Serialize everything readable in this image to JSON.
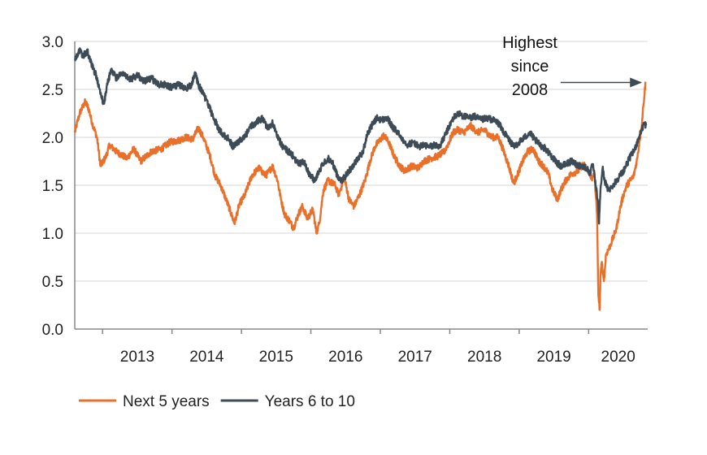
{
  "chart_data": {
    "type": "line",
    "title": "",
    "xlabel": "",
    "ylabel": "",
    "xlim": [
      2012.6,
      2020.85
    ],
    "ylim": [
      0,
      3.0
    ],
    "y_ticks": [
      "0.0",
      "0.5",
      "1.0",
      "1.5",
      "2.0",
      "2.5",
      "3.0"
    ],
    "x_tick_labels": [
      "2013",
      "2014",
      "2015",
      "2016",
      "2017",
      "2018",
      "2019",
      "2020"
    ],
    "grid": "horizontal",
    "legend_position": "bottom-left",
    "annotation": {
      "lines": [
        "Highest",
        "since",
        "2008"
      ],
      "points_to": [
        2020.8,
        2.58
      ]
    },
    "series": [
      {
        "name": "Next 5 years",
        "color": "#e8702a",
        "points": [
          [
            2012.6,
            2.05
          ],
          [
            2012.67,
            2.25
          ],
          [
            2012.75,
            2.37
          ],
          [
            2012.8,
            2.3
          ],
          [
            2012.85,
            2.15
          ],
          [
            2012.92,
            2.0
          ],
          [
            2012.97,
            1.7
          ],
          [
            2013.05,
            1.8
          ],
          [
            2013.1,
            1.92
          ],
          [
            2013.2,
            1.85
          ],
          [
            2013.35,
            1.78
          ],
          [
            2013.45,
            1.88
          ],
          [
            2013.55,
            1.75
          ],
          [
            2013.7,
            1.85
          ],
          [
            2013.85,
            1.88
          ],
          [
            2013.97,
            1.95
          ],
          [
            2014.1,
            1.97
          ],
          [
            2014.2,
            2.0
          ],
          [
            2014.3,
            1.98
          ],
          [
            2014.38,
            2.1
          ],
          [
            2014.45,
            2.0
          ],
          [
            2014.55,
            1.8
          ],
          [
            2014.62,
            1.6
          ],
          [
            2014.7,
            1.5
          ],
          [
            2014.78,
            1.35
          ],
          [
            2014.83,
            1.25
          ],
          [
            2014.9,
            1.1
          ],
          [
            2014.97,
            1.3
          ],
          [
            2015.05,
            1.4
          ],
          [
            2015.1,
            1.5
          ],
          [
            2015.15,
            1.6
          ],
          [
            2015.25,
            1.68
          ],
          [
            2015.35,
            1.6
          ],
          [
            2015.45,
            1.7
          ],
          [
            2015.52,
            1.55
          ],
          [
            2015.57,
            1.35
          ],
          [
            2015.62,
            1.2
          ],
          [
            2015.7,
            1.12
          ],
          [
            2015.75,
            1.05
          ],
          [
            2015.82,
            1.2
          ],
          [
            2015.88,
            1.28
          ],
          [
            2015.95,
            1.15
          ],
          [
            2016.03,
            1.25
          ],
          [
            2016.08,
            1.0
          ],
          [
            2016.12,
            1.1
          ],
          [
            2016.18,
            1.45
          ],
          [
            2016.25,
            1.55
          ],
          [
            2016.35,
            1.5
          ],
          [
            2016.4,
            1.4
          ],
          [
            2016.48,
            1.58
          ],
          [
            2016.55,
            1.35
          ],
          [
            2016.62,
            1.28
          ],
          [
            2016.7,
            1.4
          ],
          [
            2016.78,
            1.55
          ],
          [
            2016.85,
            1.75
          ],
          [
            2016.92,
            1.9
          ],
          [
            2016.97,
            1.95
          ],
          [
            2017.05,
            2.02
          ],
          [
            2017.12,
            1.95
          ],
          [
            2017.2,
            1.8
          ],
          [
            2017.28,
            1.7
          ],
          [
            2017.35,
            1.65
          ],
          [
            2017.45,
            1.7
          ],
          [
            2017.55,
            1.68
          ],
          [
            2017.62,
            1.75
          ],
          [
            2017.72,
            1.78
          ],
          [
            2017.82,
            1.8
          ],
          [
            2017.92,
            1.85
          ],
          [
            2017.97,
            1.92
          ],
          [
            2018.05,
            2.05
          ],
          [
            2018.12,
            2.08
          ],
          [
            2018.2,
            2.05
          ],
          [
            2018.3,
            2.12
          ],
          [
            2018.4,
            2.05
          ],
          [
            2018.5,
            2.08
          ],
          [
            2018.6,
            2.0
          ],
          [
            2018.7,
            2.0
          ],
          [
            2018.78,
            1.85
          ],
          [
            2018.85,
            1.7
          ],
          [
            2018.92,
            1.52
          ],
          [
            2018.97,
            1.6
          ],
          [
            2019.05,
            1.75
          ],
          [
            2019.12,
            1.85
          ],
          [
            2019.2,
            1.88
          ],
          [
            2019.28,
            1.75
          ],
          [
            2019.35,
            1.7
          ],
          [
            2019.42,
            1.62
          ],
          [
            2019.48,
            1.45
          ],
          [
            2019.55,
            1.35
          ],
          [
            2019.6,
            1.45
          ],
          [
            2019.67,
            1.55
          ],
          [
            2019.75,
            1.62
          ],
          [
            2019.85,
            1.65
          ],
          [
            2019.92,
            1.72
          ],
          [
            2019.97,
            1.68
          ],
          [
            2020.02,
            1.62
          ],
          [
            2020.05,
            1.55
          ],
          [
            2020.08,
            1.65
          ],
          [
            2020.12,
            1.2
          ],
          [
            2020.14,
            0.35
          ],
          [
            2020.16,
            0.2
          ],
          [
            2020.17,
            0.55
          ],
          [
            2020.19,
            0.7
          ],
          [
            2020.22,
            0.5
          ],
          [
            2020.25,
            0.78
          ],
          [
            2020.3,
            0.85
          ],
          [
            2020.35,
            0.95
          ],
          [
            2020.4,
            1.05
          ],
          [
            2020.45,
            1.25
          ],
          [
            2020.5,
            1.4
          ],
          [
            2020.55,
            1.5
          ],
          [
            2020.6,
            1.55
          ],
          [
            2020.65,
            1.6
          ],
          [
            2020.7,
            1.78
          ],
          [
            2020.73,
            1.95
          ],
          [
            2020.76,
            2.1
          ],
          [
            2020.79,
            2.35
          ],
          [
            2020.82,
            2.58
          ]
        ]
      },
      {
        "name": "Years 6 to 10",
        "color": "#3d4b57",
        "points": [
          [
            2012.6,
            2.82
          ],
          [
            2012.67,
            2.9
          ],
          [
            2012.72,
            2.85
          ],
          [
            2012.78,
            2.9
          ],
          [
            2012.85,
            2.75
          ],
          [
            2012.92,
            2.62
          ],
          [
            2012.97,
            2.45
          ],
          [
            2013.02,
            2.35
          ],
          [
            2013.07,
            2.55
          ],
          [
            2013.12,
            2.7
          ],
          [
            2013.2,
            2.62
          ],
          [
            2013.3,
            2.68
          ],
          [
            2013.4,
            2.6
          ],
          [
            2013.5,
            2.65
          ],
          [
            2013.6,
            2.58
          ],
          [
            2013.7,
            2.62
          ],
          [
            2013.8,
            2.55
          ],
          [
            2013.9,
            2.55
          ],
          [
            2014.0,
            2.52
          ],
          [
            2014.1,
            2.55
          ],
          [
            2014.2,
            2.5
          ],
          [
            2014.28,
            2.55
          ],
          [
            2014.33,
            2.68
          ],
          [
            2014.38,
            2.55
          ],
          [
            2014.45,
            2.45
          ],
          [
            2014.52,
            2.35
          ],
          [
            2014.6,
            2.2
          ],
          [
            2014.68,
            2.08
          ],
          [
            2014.75,
            2.02
          ],
          [
            2014.82,
            1.98
          ],
          [
            2014.88,
            1.9
          ],
          [
            2014.95,
            1.95
          ],
          [
            2015.05,
            2.0
          ],
          [
            2015.12,
            2.1
          ],
          [
            2015.2,
            2.15
          ],
          [
            2015.3,
            2.2
          ],
          [
            2015.38,
            2.1
          ],
          [
            2015.45,
            2.15
          ],
          [
            2015.52,
            2.0
          ],
          [
            2015.6,
            1.9
          ],
          [
            2015.68,
            1.85
          ],
          [
            2015.75,
            1.8
          ],
          [
            2015.82,
            1.72
          ],
          [
            2015.9,
            1.75
          ],
          [
            2015.95,
            1.65
          ],
          [
            2016.0,
            1.6
          ],
          [
            2016.05,
            1.55
          ],
          [
            2016.12,
            1.65
          ],
          [
            2016.18,
            1.72
          ],
          [
            2016.25,
            1.78
          ],
          [
            2016.32,
            1.72
          ],
          [
            2016.38,
            1.6
          ],
          [
            2016.45,
            1.55
          ],
          [
            2016.52,
            1.62
          ],
          [
            2016.6,
            1.7
          ],
          [
            2016.68,
            1.78
          ],
          [
            2016.75,
            1.85
          ],
          [
            2016.82,
            2.05
          ],
          [
            2016.9,
            2.15
          ],
          [
            2016.95,
            2.2
          ],
          [
            2017.02,
            2.18
          ],
          [
            2017.1,
            2.2
          ],
          [
            2017.18,
            2.1
          ],
          [
            2017.25,
            2.05
          ],
          [
            2017.32,
            1.98
          ],
          [
            2017.4,
            1.92
          ],
          [
            2017.48,
            1.95
          ],
          [
            2017.55,
            1.9
          ],
          [
            2017.62,
            1.92
          ],
          [
            2017.7,
            1.9
          ],
          [
            2017.78,
            1.92
          ],
          [
            2017.85,
            1.9
          ],
          [
            2017.92,
            2.0
          ],
          [
            2017.97,
            2.08
          ],
          [
            2018.05,
            2.2
          ],
          [
            2018.12,
            2.25
          ],
          [
            2018.2,
            2.22
          ],
          [
            2018.28,
            2.2
          ],
          [
            2018.35,
            2.22
          ],
          [
            2018.45,
            2.18
          ],
          [
            2018.55,
            2.2
          ],
          [
            2018.62,
            2.18
          ],
          [
            2018.7,
            2.15
          ],
          [
            2018.78,
            2.05
          ],
          [
            2018.85,
            1.98
          ],
          [
            2018.92,
            1.9
          ],
          [
            2019.0,
            1.95
          ],
          [
            2019.08,
            2.0
          ],
          [
            2019.15,
            2.05
          ],
          [
            2019.22,
            1.98
          ],
          [
            2019.3,
            1.92
          ],
          [
            2019.38,
            1.88
          ],
          [
            2019.45,
            1.82
          ],
          [
            2019.52,
            1.75
          ],
          [
            2019.6,
            1.7
          ],
          [
            2019.68,
            1.72
          ],
          [
            2019.75,
            1.75
          ],
          [
            2019.82,
            1.72
          ],
          [
            2019.9,
            1.7
          ],
          [
            2019.97,
            1.68
          ],
          [
            2020.02,
            1.62
          ],
          [
            2020.06,
            1.72
          ],
          [
            2020.1,
            1.5
          ],
          [
            2020.13,
            1.35
          ],
          [
            2020.15,
            1.1
          ],
          [
            2020.17,
            1.45
          ],
          [
            2020.2,
            1.68
          ],
          [
            2020.23,
            1.55
          ],
          [
            2020.28,
            1.45
          ],
          [
            2020.33,
            1.48
          ],
          [
            2020.4,
            1.55
          ],
          [
            2020.45,
            1.6
          ],
          [
            2020.5,
            1.65
          ],
          [
            2020.55,
            1.72
          ],
          [
            2020.6,
            1.8
          ],
          [
            2020.65,
            1.85
          ],
          [
            2020.7,
            1.95
          ],
          [
            2020.75,
            2.05
          ],
          [
            2020.8,
            2.15
          ],
          [
            2020.83,
            2.12
          ]
        ]
      }
    ]
  }
}
